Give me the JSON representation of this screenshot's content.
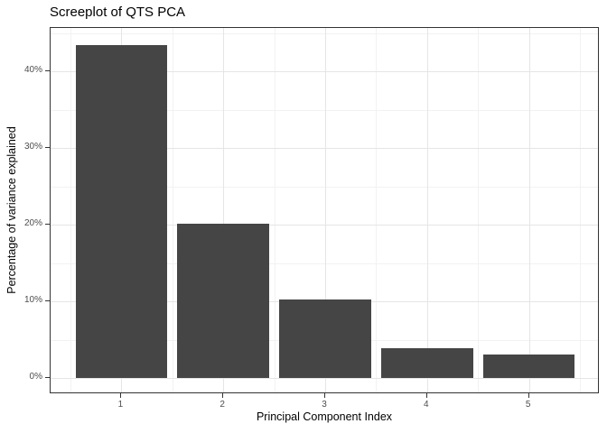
{
  "chart_data": {
    "type": "bar",
    "title": "Screeplot of QTS PCA",
    "xlabel": "Principal Component Index",
    "ylabel": "Percentage of variance explained",
    "categories": [
      "1",
      "2",
      "3",
      "4",
      "5"
    ],
    "values": [
      43.5,
      20.1,
      10.3,
      3.9,
      3.1
    ],
    "y_ticks": [
      {
        "value": 0,
        "label": "0%"
      },
      {
        "value": 10,
        "label": "10%"
      },
      {
        "value": 20,
        "label": "20%"
      },
      {
        "value": 30,
        "label": "30%"
      },
      {
        "value": 40,
        "label": "40%"
      }
    ],
    "y_minor": [
      5,
      15,
      25,
      35,
      45
    ],
    "x_ticks": [
      {
        "value": 1,
        "label": "1"
      },
      {
        "value": 2,
        "label": "2"
      },
      {
        "value": 3,
        "label": "3"
      },
      {
        "value": 4,
        "label": "4"
      },
      {
        "value": 5,
        "label": "5"
      }
    ],
    "x_minor": [
      0.5,
      1.5,
      2.5,
      3.5,
      4.5,
      5.5
    ],
    "xlim": [
      0.305,
      5.695
    ],
    "ylim": [
      -2.1,
      45.7
    ],
    "bar_width": 0.9,
    "grid": true,
    "legend": "none",
    "colors": {
      "bar_fill": "#454545",
      "panel_border": "#333333",
      "grid_major": "#e5e5e5",
      "grid_minor": "#f2f2f2",
      "tick_mark": "#333333",
      "tick_label": "#4d4d4d",
      "text": "#000000",
      "background": "#ffffff"
    }
  }
}
